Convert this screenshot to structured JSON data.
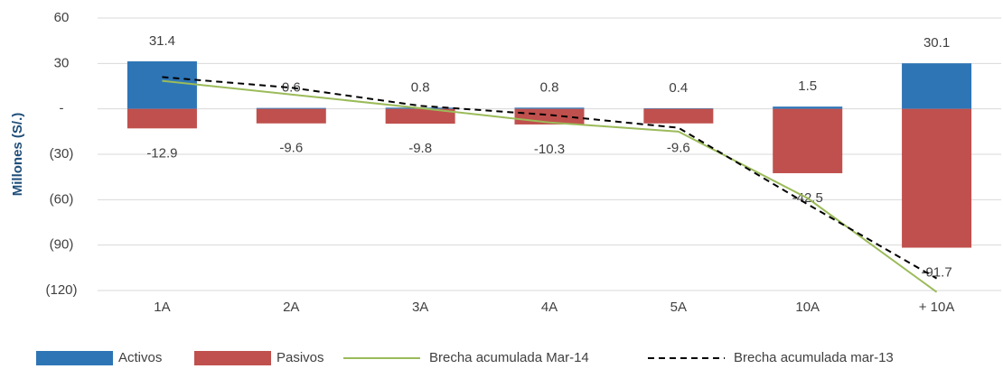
{
  "chart_data": {
    "type": "bar",
    "y_label": "Millones (S/.)",
    "categories": [
      "1A",
      "2A",
      "3A",
      "4A",
      "5A",
      "10A",
      "+ 10A"
    ],
    "series": [
      {
        "name": "Activos",
        "type": "bar",
        "color": "#2e75b6",
        "values": [
          31.4,
          0.6,
          0.8,
          0.8,
          0.4,
          1.5,
          30.1
        ]
      },
      {
        "name": "Pasivos",
        "type": "bar",
        "color": "#c0504d",
        "values": [
          -12.9,
          -9.6,
          -9.8,
          -10.3,
          -9.6,
          -42.5,
          -91.7
        ]
      },
      {
        "name": "Brecha acumulada Mar-14",
        "type": "line",
        "color": "#9bbb59",
        "dashed": false,
        "values": [
          18.5,
          9.5,
          0.5,
          -9.0,
          -15.0,
          -59.0,
          -121.0
        ]
      },
      {
        "name": "Brecha acumulada mar-13",
        "type": "line",
        "color": "#000000",
        "dashed": true,
        "values": [
          21.0,
          14.0,
          2.0,
          -4.0,
          -12.5,
          -63.0,
          -112.0
        ]
      }
    ],
    "ylim": [
      -120,
      60
    ],
    "yticks": [
      60,
      30,
      {
        "value": 0,
        "label": "-"
      },
      {
        "value": -30,
        "label": "(30)"
      },
      {
        "value": -60,
        "label": "(60)"
      },
      {
        "value": -90,
        "label": "(90)"
      },
      {
        "value": -120,
        "label": "(120)"
      }
    ],
    "grid": true,
    "legend": "bottom"
  }
}
